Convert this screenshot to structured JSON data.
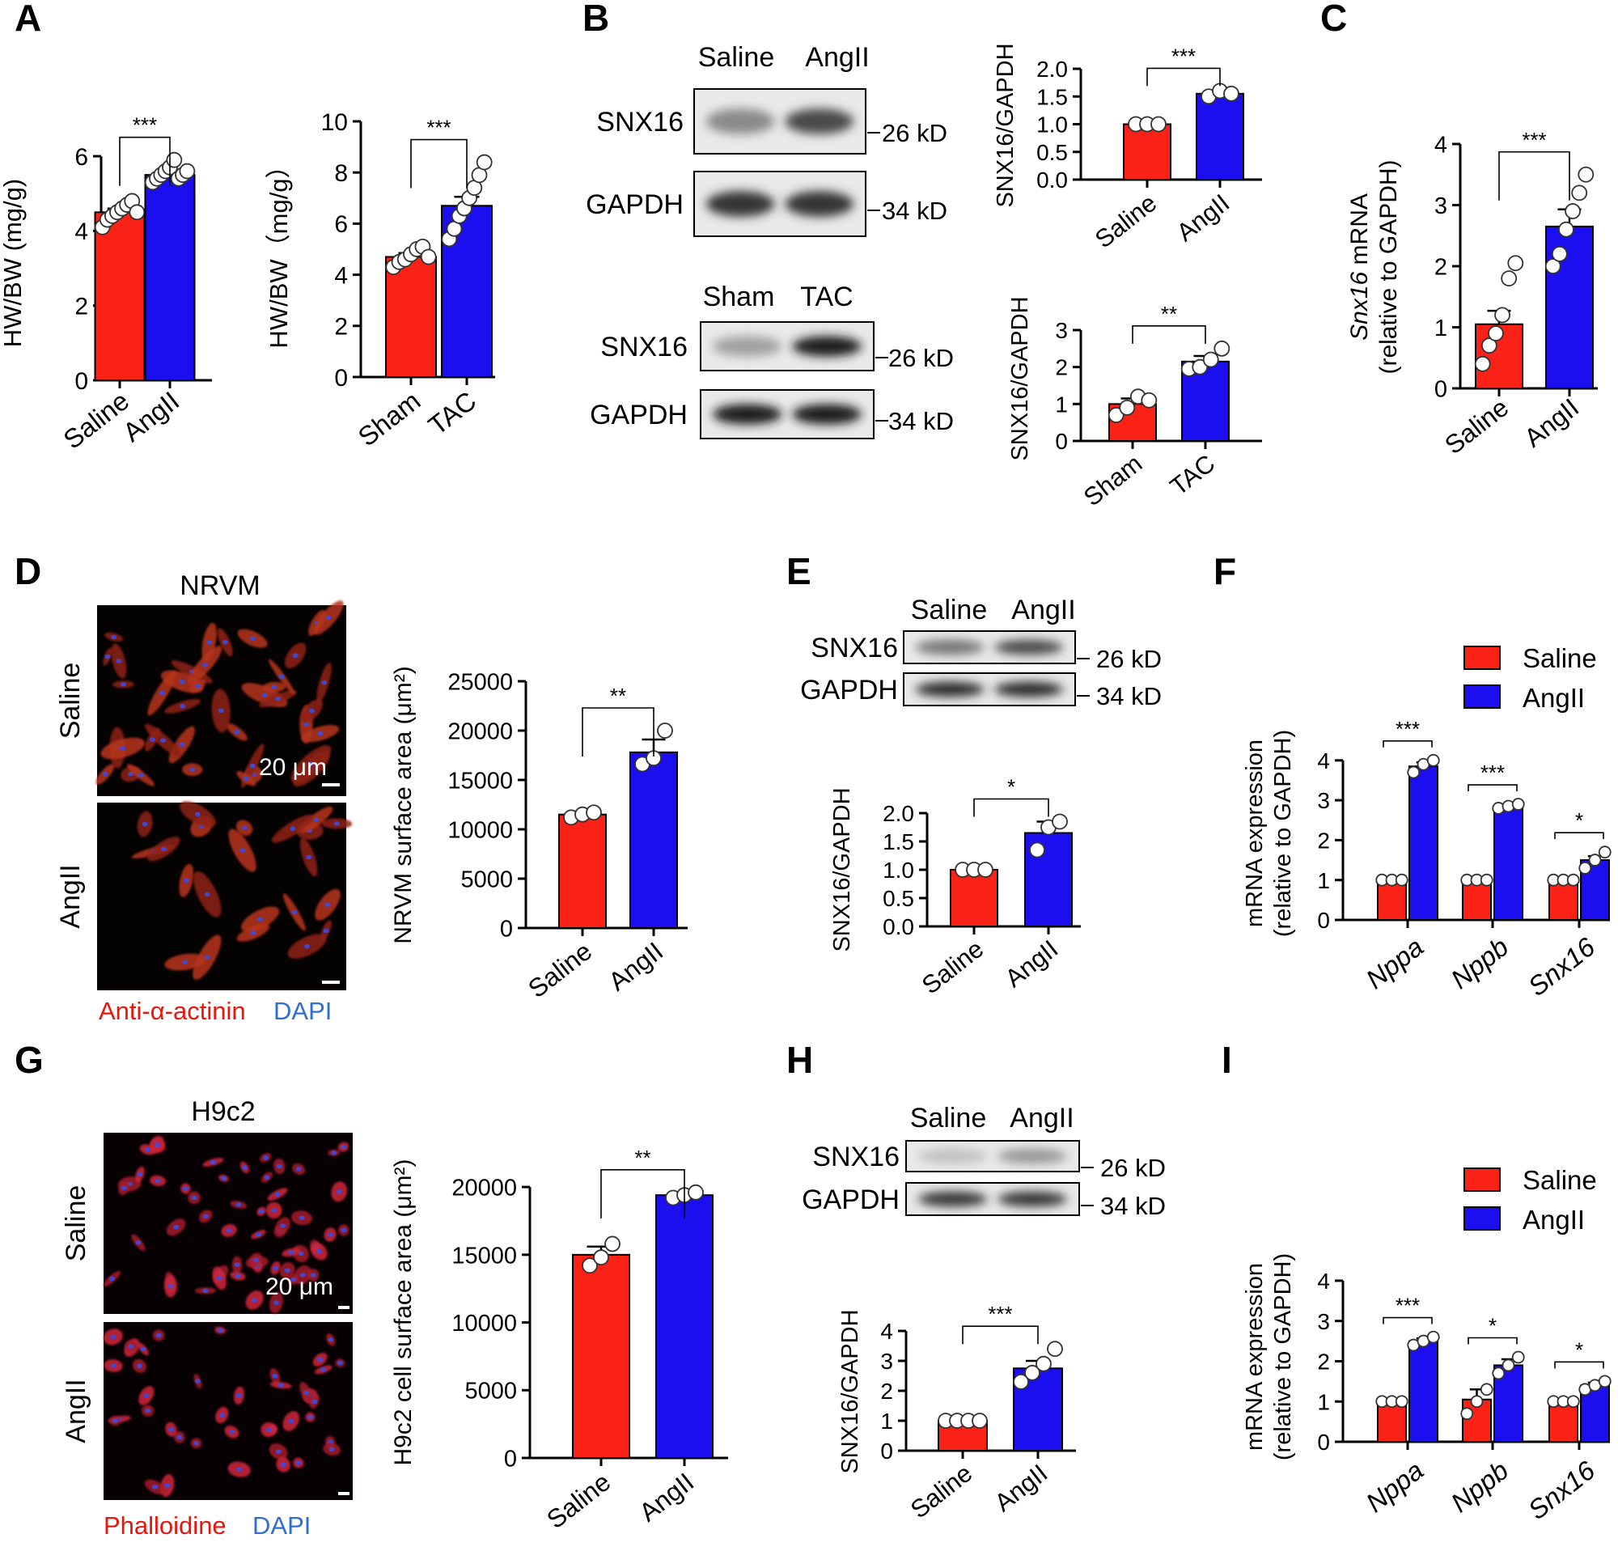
{
  "figure": {
    "panel_labels": [
      "A",
      "B",
      "C",
      "D",
      "E",
      "F",
      "G",
      "H",
      "I"
    ]
  },
  "colors": {
    "saline": "#fa2117",
    "angii": "#1b0ff0",
    "axis": "#000000",
    "red_label": "#e8160c",
    "blue_label": "#2f6fd0"
  },
  "microscopy": {
    "D": {
      "title": "NRVM",
      "rows": [
        "Saline",
        "AngII"
      ],
      "scale": "20 μm",
      "stain_red": "Anti-α-actinin",
      "stain_blue": "DAPI",
      "style": "fibrous"
    },
    "G": {
      "title": "H9c2",
      "rows": [
        "Saline",
        "AngII"
      ],
      "scale": "20 μm",
      "stain_red": "Phalloidine",
      "stain_blue": "DAPI",
      "style": "spotty"
    }
  },
  "blots": [
    {
      "id": "B1",
      "lanes": [
        "Saline",
        "AngII"
      ],
      "rows": [
        {
          "label": "SNX16",
          "kd": "26 kD",
          "intensity": [
            0.45,
            0.75
          ]
        },
        {
          "label": "GAPDH",
          "kd": "34 kD",
          "intensity": [
            0.85,
            0.85
          ]
        }
      ]
    },
    {
      "id": "B2",
      "lanes": [
        "Sham",
        "TAC"
      ],
      "rows": [
        {
          "label": "SNX16",
          "kd": "26 kD",
          "intensity": [
            0.35,
            0.95
          ]
        },
        {
          "label": "GAPDH",
          "kd": "34 kD",
          "intensity": [
            0.95,
            0.95
          ]
        }
      ]
    },
    {
      "id": "E",
      "lanes": [
        "Saline",
        "AngII"
      ],
      "rows": [
        {
          "label": "SNX16",
          "kd": "26 kD",
          "intensity": [
            0.55,
            0.75
          ]
        },
        {
          "label": "GAPDH",
          "kd": "34 kD",
          "intensity": [
            0.9,
            0.9
          ]
        }
      ]
    },
    {
      "id": "H",
      "lanes": [
        "Saline",
        "AngII"
      ],
      "rows": [
        {
          "label": "SNX16",
          "kd": "26 kD",
          "intensity": [
            0.2,
            0.4
          ]
        },
        {
          "label": "GAPDH",
          "kd": "34 kD",
          "intensity": [
            0.85,
            0.85
          ]
        }
      ]
    }
  ],
  "chart_data": [
    {
      "id": "A1",
      "type": "bar",
      "title": "",
      "xlabel": "",
      "ylabel": "HW/BW (mg/g)",
      "categories": [
        "Saline",
        "AngII"
      ],
      "values": [
        4.5,
        5.5
      ],
      "errors": [
        0.1,
        0.1
      ],
      "points": [
        [
          4.1,
          4.3,
          4.4,
          4.5,
          4.6,
          4.7,
          4.8,
          4.5
        ],
        [
          5.3,
          5.4,
          5.5,
          5.6,
          5.7,
          5.9,
          5.4,
          5.5,
          5.6
        ]
      ],
      "ylim": [
        0,
        6.5
      ],
      "yticks": [
        0,
        2,
        4,
        6
      ],
      "significance": "***",
      "grouped": false
    },
    {
      "id": "A2",
      "type": "bar",
      "title": "",
      "xlabel": "",
      "ylabel": "HW/BW（mg/g）",
      "categories": [
        "Sham",
        "TAC"
      ],
      "values": [
        4.7,
        6.7
      ],
      "errors": [
        0.15,
        0.35
      ],
      "points": [
        [
          4.3,
          4.5,
          4.6,
          4.8,
          5.0,
          5.1,
          4.7
        ],
        [
          5.4,
          5.8,
          6.3,
          6.6,
          7.0,
          7.4,
          7.9,
          8.4
        ]
      ],
      "ylim": [
        0,
        10
      ],
      "yticks": [
        0,
        2,
        4,
        6,
        8,
        10
      ],
      "significance": "***",
      "grouped": false
    },
    {
      "id": "B1",
      "type": "bar",
      "title": "",
      "xlabel": "",
      "ylabel": "SNX16/GAPDH",
      "categories": [
        "Saline",
        "AngII"
      ],
      "values": [
        1.0,
        1.55
      ],
      "errors": [
        0.02,
        0.05
      ],
      "points": [
        [
          1.0,
          1.0,
          1.0
        ],
        [
          1.5,
          1.6,
          1.55
        ]
      ],
      "ylim": [
        0,
        2.0
      ],
      "yticks": [
        "0.0",
        "0.5",
        "1.0",
        "1.5",
        "2.0"
      ],
      "significance": "***",
      "grouped": false
    },
    {
      "id": "B2",
      "type": "bar",
      "title": "",
      "xlabel": "",
      "ylabel": "SNX16/GAPDH",
      "categories": [
        "Sham",
        "TAC"
      ],
      "values": [
        1.0,
        2.15
      ],
      "errors": [
        0.15,
        0.15
      ],
      "points": [
        [
          0.7,
          0.9,
          1.2,
          1.1
        ],
        [
          1.95,
          2.0,
          2.2,
          2.5
        ]
      ],
      "ylim": [
        0,
        3
      ],
      "yticks": [
        0,
        1,
        2,
        3
      ],
      "significance": "**",
      "grouped": false
    },
    {
      "id": "C",
      "type": "bar",
      "title": "",
      "xlabel": "",
      "ylabel": "Snx16 mRNA|(relative to GAPDH)",
      "categories": [
        "Saline",
        "AngII"
      ],
      "values": [
        1.05,
        2.65
      ],
      "errors": [
        0.22,
        0.28
      ],
      "points": [
        [
          0.4,
          0.7,
          0.9,
          1.2,
          1.8,
          2.05
        ],
        [
          2.0,
          2.2,
          2.6,
          2.9,
          3.2,
          3.5
        ]
      ],
      "ylim": [
        0,
        4
      ],
      "yticks": [
        0,
        1,
        2,
        3,
        4
      ],
      "significance": "***",
      "grouped": false
    },
    {
      "id": "D",
      "type": "bar",
      "title": "",
      "xlabel": "",
      "ylabel": "NRVM surface area (μm²)",
      "categories": [
        "Saline",
        "AngII"
      ],
      "values": [
        11500,
        17800
      ],
      "errors": [
        300,
        1300
      ],
      "points": [
        [
          11200,
          11500,
          11700
        ],
        [
          16600,
          17200,
          20000
        ]
      ],
      "ylim": [
        0,
        25000
      ],
      "yticks": [
        0,
        5000,
        10000,
        15000,
        20000,
        25000
      ],
      "significance": "**",
      "grouped": false
    },
    {
      "id": "E",
      "type": "bar",
      "title": "",
      "xlabel": "",
      "ylabel": "SNX16/GAPDH",
      "categories": [
        "Saline",
        "AngII"
      ],
      "values": [
        1.0,
        1.65
      ],
      "errors": [
        0.02,
        0.2
      ],
      "points": [
        [
          1.0,
          1.0,
          1.0
        ],
        [
          1.35,
          1.75,
          1.85
        ]
      ],
      "ylim": [
        0,
        2.0
      ],
      "yticks": [
        "0.0",
        "0.5",
        "1.0",
        "1.5",
        "2.0"
      ],
      "significance": "*",
      "grouped": false
    },
    {
      "id": "F",
      "type": "bar",
      "title": "",
      "xlabel": "",
      "ylabel": "mRNA expression|(relative to GAPDH)",
      "categories": [
        "Nppa",
        "Nppb",
        "Snx16"
      ],
      "series": [
        {
          "name": "Saline",
          "values": [
            1.0,
            1.0,
            1.0
          ],
          "errors": [
            0.04,
            0.04,
            0.04
          ],
          "points": [
            [
              1.0,
              1.0,
              1.0
            ],
            [
              1.0,
              1.0,
              1.0
            ],
            [
              1.0,
              1.0,
              1.0
            ]
          ]
        },
        {
          "name": "AngII",
          "values": [
            3.85,
            2.85,
            1.5
          ],
          "errors": [
            0.1,
            0.05,
            0.1
          ],
          "points": [
            [
              3.7,
              3.9,
              4.0
            ],
            [
              2.8,
              2.85,
              2.9
            ],
            [
              1.3,
              1.5,
              1.7
            ]
          ]
        }
      ],
      "ylim": [
        0,
        4.3
      ],
      "yticks": [
        0,
        1,
        2,
        3,
        4
      ],
      "significance": [
        "***",
        "***",
        "*"
      ],
      "grouped": true,
      "legend": "top-right"
    },
    {
      "id": "G",
      "type": "bar",
      "title": "",
      "xlabel": "",
      "ylabel": "H9c2 cell surface area (μm²)",
      "categories": [
        "Saline",
        "AngII"
      ],
      "values": [
        15000,
        19400
      ],
      "errors": [
        600,
        200
      ],
      "points": [
        [
          14200,
          14800,
          15800
        ],
        [
          19200,
          19400,
          19600
        ]
      ],
      "ylim": [
        0,
        21500
      ],
      "yticks": [
        0,
        5000,
        10000,
        15000,
        20000
      ],
      "significance": "**",
      "grouped": false
    },
    {
      "id": "H",
      "type": "bar",
      "title": "",
      "xlabel": "",
      "ylabel": "SNX16/GAPDH",
      "categories": [
        "Saline",
        "AngII"
      ],
      "values": [
        1.0,
        2.75
      ],
      "errors": [
        0.02,
        0.25
      ],
      "points": [
        [
          1.0,
          1.0,
          1.0,
          1.0
        ],
        [
          2.3,
          2.6,
          2.9,
          3.4
        ]
      ],
      "ylim": [
        0,
        4
      ],
      "yticks": [
        0,
        1,
        2,
        3,
        4
      ],
      "significance": "***",
      "grouped": false
    },
    {
      "id": "I",
      "type": "bar",
      "title": "",
      "xlabel": "",
      "ylabel": "mRNA expression|(relative to GAPDH)",
      "categories": [
        "Nppa",
        "Nppb",
        "Snx16"
      ],
      "series": [
        {
          "name": "Saline",
          "values": [
            1.0,
            1.05,
            1.0
          ],
          "errors": [
            0.05,
            0.25,
            0.05
          ],
          "points": [
            [
              1.0,
              1.0,
              1.0
            ],
            [
              0.7,
              1.0,
              1.3
            ],
            [
              1.0,
              1.0,
              1.0
            ]
          ]
        },
        {
          "name": "AngII",
          "values": [
            2.5,
            1.9,
            1.4
          ],
          "errors": [
            0.07,
            0.15,
            0.07
          ],
          "points": [
            [
              2.4,
              2.5,
              2.6
            ],
            [
              1.7,
              1.9,
              2.1
            ],
            [
              1.3,
              1.4,
              1.5
            ]
          ]
        }
      ],
      "ylim": [
        0,
        4.3
      ],
      "yticks": [
        0,
        1,
        2,
        3,
        4
      ],
      "significance": [
        "***",
        "*",
        "*"
      ],
      "grouped": true,
      "legend": "top-right"
    }
  ]
}
